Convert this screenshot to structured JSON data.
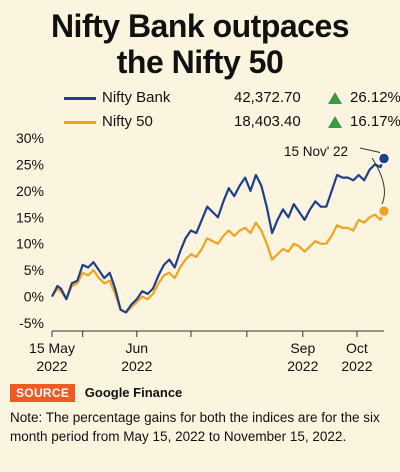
{
  "title_lines": [
    "Nifty Bank outpaces",
    "the Nifty 50"
  ],
  "source": {
    "label": "SOURCE",
    "text": "Google Finance"
  },
  "note": "Note: The percentage gains for both the indices are for the six month period from May 15, 2022 to November 15, 2022.",
  "chart_data": {
    "type": "line",
    "title": "Nifty Bank outpaces the Nifty 50",
    "ylim": [
      -5,
      30
    ],
    "yticks": [
      -5,
      0,
      5,
      10,
      15,
      20,
      25,
      30
    ],
    "ytick_labels": [
      "-5%",
      "0%",
      "5%",
      "10%",
      "15%",
      "20%",
      "25%",
      "30%"
    ],
    "x_range_days": [
      0,
      184
    ],
    "xticks": [
      {
        "day": 0,
        "line1": "15 May",
        "line2": "2022"
      },
      {
        "day": 17,
        "line1": "",
        "line2": ""
      },
      {
        "day": 47,
        "line1": "Jun",
        "line2": "2022"
      },
      {
        "day": 77,
        "line1": "",
        "line2": ""
      },
      {
        "day": 108,
        "line1": "",
        "line2": ""
      },
      {
        "day": 139,
        "line1": "Sep",
        "line2": "2022"
      },
      {
        "day": 169,
        "line1": "Oct",
        "line2": "2022"
      }
    ],
    "grid": false,
    "annotation": {
      "text": "15 Nov' 22",
      "day": 184
    },
    "series": [
      {
        "name": "Nifty Bank",
        "color": "#1f3e8c",
        "latest_value": "42,372.70",
        "change": "26.12%",
        "days": [
          0,
          3,
          5,
          8,
          11,
          14,
          17,
          20,
          23,
          26,
          29,
          32,
          35,
          38,
          41,
          44,
          47,
          50,
          53,
          56,
          59,
          62,
          65,
          68,
          71,
          74,
          77,
          80,
          83,
          86,
          89,
          92,
          95,
          98,
          101,
          104,
          107,
          110,
          113,
          116,
          119,
          122,
          125,
          128,
          131,
          134,
          137,
          140,
          143,
          146,
          149,
          152,
          155,
          158,
          161,
          164,
          167,
          170,
          173,
          176,
          179,
          182,
          184
        ],
        "values": [
          0,
          2,
          1.5,
          -0.5,
          2.5,
          3,
          6,
          5.5,
          6.5,
          5,
          3.5,
          4.5,
          1.5,
          -2.5,
          -3,
          -1.5,
          -0.5,
          1,
          0.5,
          1.5,
          4,
          6,
          7,
          5.5,
          8.5,
          11,
          12.5,
          12,
          14.5,
          17,
          16,
          15,
          18,
          20.5,
          19,
          21,
          22.5,
          20,
          23,
          21,
          17,
          12,
          14.5,
          16.5,
          15,
          17.5,
          16,
          14.5,
          16.5,
          18,
          17,
          17,
          20,
          23,
          22.5,
          22.5,
          22,
          23,
          22,
          24,
          25,
          24.5,
          26.12
        ]
      },
      {
        "name": "Nifty 50",
        "color": "#f2a31d",
        "latest_value": "18,403.40",
        "change": "16.17%",
        "days": [
          0,
          3,
          5,
          8,
          11,
          14,
          17,
          20,
          23,
          26,
          29,
          32,
          35,
          38,
          41,
          44,
          47,
          50,
          53,
          56,
          59,
          62,
          65,
          68,
          71,
          74,
          77,
          80,
          83,
          86,
          89,
          92,
          95,
          98,
          101,
          104,
          107,
          110,
          113,
          116,
          119,
          122,
          125,
          128,
          131,
          134,
          137,
          140,
          143,
          146,
          149,
          152,
          155,
          158,
          161,
          164,
          167,
          170,
          173,
          176,
          179,
          182,
          184
        ],
        "values": [
          0,
          1.5,
          1,
          -0.5,
          2,
          2.5,
          4.5,
          4,
          5,
          3.5,
          2.5,
          3,
          0.5,
          -2.5,
          -3,
          -2,
          -1,
          0,
          -0.5,
          0.5,
          2.5,
          4,
          4.5,
          3.5,
          5.5,
          7,
          8,
          7.5,
          9,
          11,
          10.5,
          10,
          11.5,
          12.5,
          11.5,
          12.5,
          13,
          12,
          14,
          12.5,
          10,
          7,
          8,
          9,
          8.5,
          10,
          9.5,
          8.5,
          9.5,
          10.5,
          10,
          10,
          11.5,
          13.5,
          13,
          13,
          12.5,
          14.5,
          14,
          15,
          15.5,
          14.5,
          16.17
        ]
      }
    ]
  }
}
